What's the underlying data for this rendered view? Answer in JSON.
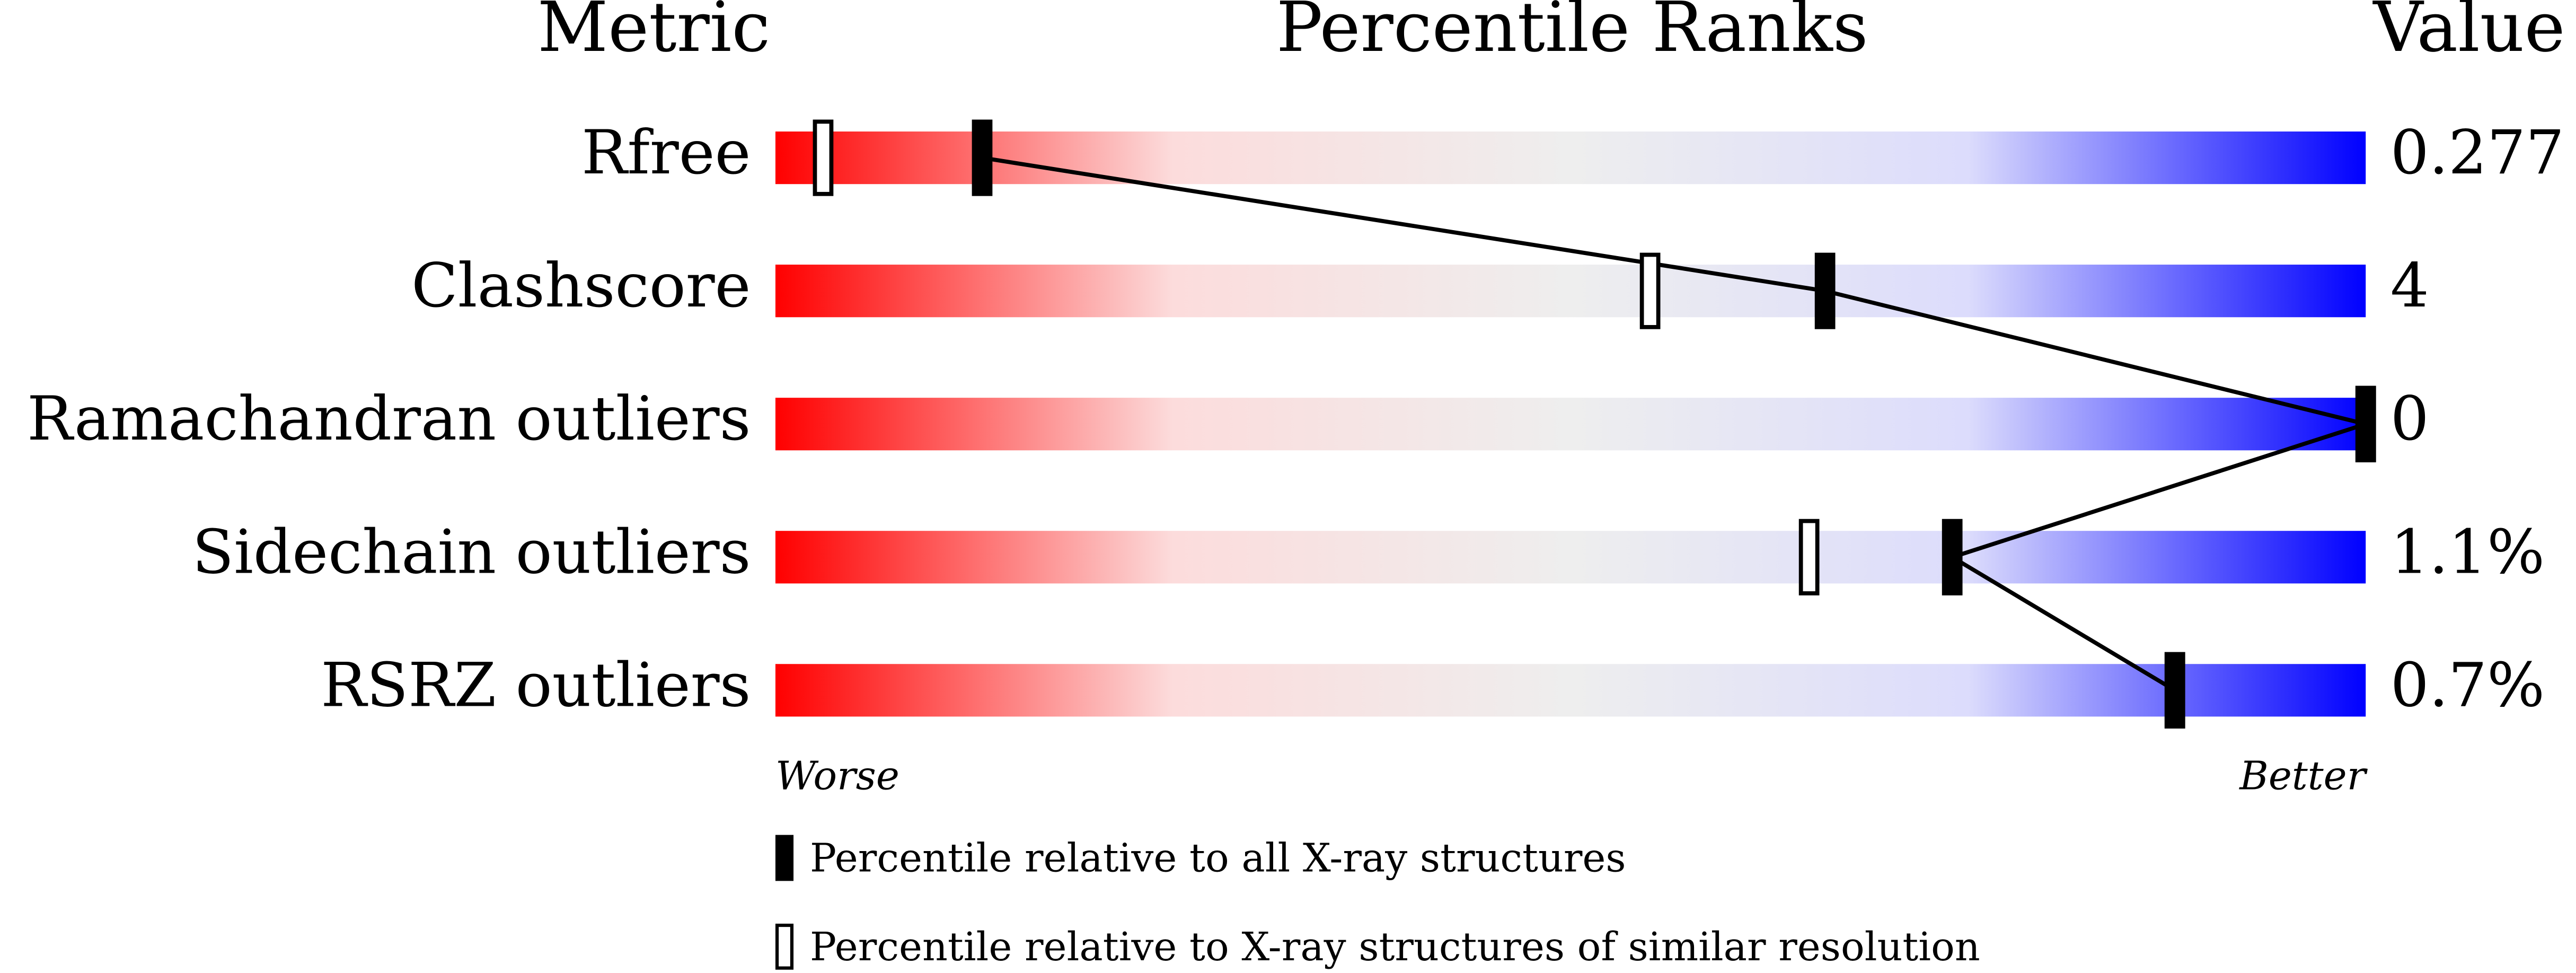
{
  "chart_data": {
    "type": "percentile",
    "headers": {
      "metric": "Metric",
      "percentile": "Percentile Ranks",
      "value": "Value"
    },
    "categories": [
      "Rfree",
      "Clashscore",
      "Ramachandran outliers",
      "Sidechain outliers",
      "RSRZ outliers"
    ],
    "metric_values": [
      "0.277",
      "4",
      "0",
      "1.1%",
      "0.7%"
    ],
    "series": [
      {
        "name": "Percentile relative to all X-ray structures",
        "color": "#000000",
        "values": [
          13,
          66,
          100,
          74,
          88
        ]
      },
      {
        "name": "Percentile relative to X-ray structures of similar resolution",
        "color": "#ffffff",
        "values": [
          3,
          55,
          100,
          65,
          88
        ]
      }
    ],
    "xlim": [
      0,
      100
    ],
    "axis_labels": {
      "low": "Worse",
      "high": "Better"
    },
    "colors": [
      "#ff0000",
      "#fcdcdc",
      "#eeeeee",
      "#dcdcfc",
      "#0000ff"
    ]
  }
}
